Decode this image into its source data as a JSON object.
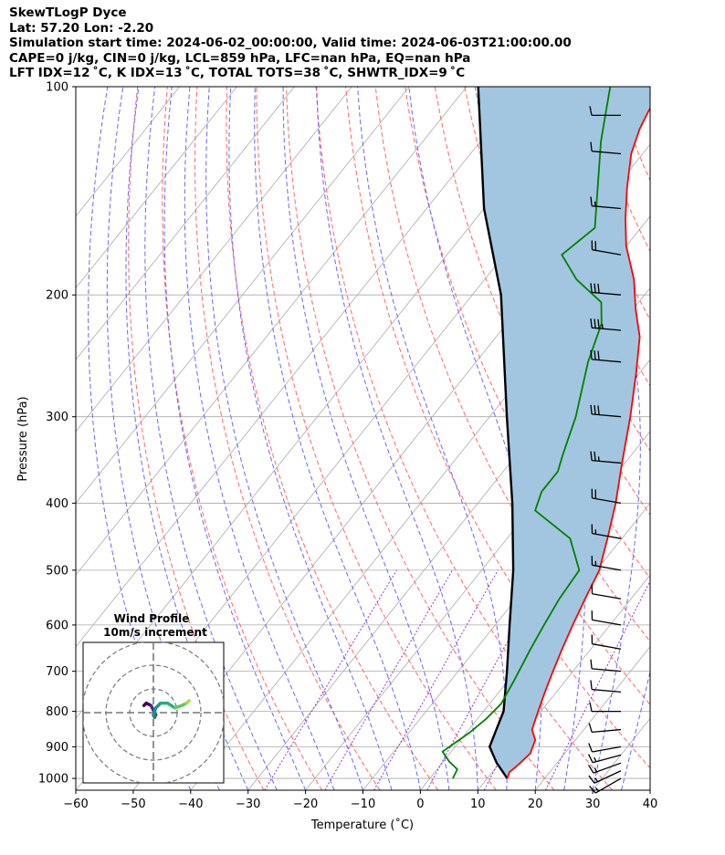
{
  "header": {
    "line1": "SkewTLogP Dyce",
    "line2": "Lat: 57.20   Lon: -2.20",
    "line3": "Simulation start time: 2024-06-02_00:00:00, Valid time: 2024-06-03T21:00:00.00",
    "line4": "CAPE=0 j/kg, CIN=0 j/kg, LCL=859 hPa, LFC=nan hPa, EQ=nan hPa",
    "line5": "LFT IDX=12 ˚C, K IDX=13 ˚C, TOTAL TOTS=38 ˚C, SHWTR_IDX=9 ˚C"
  },
  "colors": {
    "temperature": "#ff0000",
    "dewpoint": "#008000",
    "parcel": "#000000",
    "cape_fill": "#a3c6e0",
    "dry_adiabat": "#ff6666",
    "moist_adiabat": "#6666ff",
    "mixing_ratio": "#9933cc",
    "isotherm_grid": "#aaaaaa"
  },
  "chart_data": [
    {
      "type": "line",
      "title": "",
      "xlabel": "Temperature (˚C)",
      "ylabel": "Pressure (hPa)",
      "xlim": [
        -60,
        40
      ],
      "ylim": [
        1040,
        100
      ],
      "yscale": "log",
      "skew": true,
      "grid": true,
      "x_ticks": [
        "−60",
        "−50",
        "−40",
        "−30",
        "−20",
        "−10",
        "0",
        "10",
        "20",
        "30",
        "40"
      ],
      "y_ticks": [
        "100",
        "200",
        "300",
        "400",
        "500",
        "600",
        "700",
        "800",
        "900",
        "1000"
      ],
      "series": [
        {
          "key": "temperature",
          "color": "#ff0000",
          "points": [
            [
              13.5,
              1000
            ],
            [
              13.0,
              980
            ],
            [
              13.5,
              955
            ],
            [
              14.0,
              920
            ],
            [
              13.0,
              880
            ],
            [
              11.0,
              850
            ],
            [
              9.5,
              800
            ],
            [
              8.0,
              750
            ],
            [
              6.5,
              700
            ],
            [
              5.0,
              650
            ],
            [
              3.5,
              600
            ],
            [
              2.0,
              550
            ],
            [
              0.5,
              500
            ],
            [
              -2.5,
              450
            ],
            [
              -6.0,
              400
            ],
            [
              -10.5,
              350
            ],
            [
              -15.5,
              300
            ],
            [
              -20.5,
              260
            ],
            [
              -25.0,
              230
            ],
            [
              -29.5,
              210
            ],
            [
              -34.0,
              190
            ],
            [
              -40.0,
              170
            ],
            [
              -44.0,
              155
            ],
            [
              -48.0,
              140
            ],
            [
              -52.0,
              125
            ],
            [
              -54.0,
              115
            ],
            [
              -55.0,
              108
            ],
            [
              -55.5,
              100
            ]
          ]
        },
        {
          "key": "dewpoint",
          "color": "#008000",
          "points": [
            [
              4.0,
              1000
            ],
            [
              3.5,
              970
            ],
            [
              1.0,
              945
            ],
            [
              -1.5,
              915
            ],
            [
              -1.0,
              900
            ],
            [
              0.5,
              860
            ],
            [
              1.5,
              820
            ],
            [
              2.0,
              780
            ],
            [
              1.0,
              720
            ],
            [
              -0.5,
              650
            ],
            [
              -1.5,
              600
            ],
            [
              -2.5,
              550
            ],
            [
              -3.0,
              500
            ],
            [
              -9.0,
              450
            ],
            [
              -19.0,
              410
            ],
            [
              -20.5,
              385
            ],
            [
              -20.5,
              360
            ],
            [
              -22.0,
              340
            ],
            [
              -25.0,
              300
            ],
            [
              -30.5,
              250
            ],
            [
              -33.5,
              220
            ],
            [
              -36.5,
              205
            ],
            [
              -44.0,
              190
            ],
            [
              -50.0,
              175
            ],
            [
              -48.0,
              160
            ],
            [
              -59.0,
              120
            ],
            [
              -65.0,
              100
            ]
          ]
        },
        {
          "key": "parcel",
          "color": "#000000",
          "points": [
            [
              13.5,
              1000
            ],
            [
              9.5,
              950
            ],
            [
              6.0,
              900
            ],
            [
              5.0,
              859
            ],
            [
              3.5,
              800
            ],
            [
              -1.5,
              700
            ],
            [
              -7.5,
              600
            ],
            [
              -14.5,
              500
            ],
            [
              -24.0,
              400
            ],
            [
              -37.0,
              300
            ],
            [
              -55.0,
              200
            ],
            [
              -70.0,
              150
            ],
            [
              -88.0,
              100
            ]
          ]
        }
      ],
      "wind_barbs": [
        {
          "pressure": 1000,
          "speed_kt": 15,
          "dir_deg": 240
        },
        {
          "pressure": 975,
          "speed_kt": 15,
          "dir_deg": 245
        },
        {
          "pressure": 950,
          "speed_kt": 15,
          "dir_deg": 250
        },
        {
          "pressure": 925,
          "speed_kt": 15,
          "dir_deg": 255
        },
        {
          "pressure": 900,
          "speed_kt": 10,
          "dir_deg": 260
        },
        {
          "pressure": 850,
          "speed_kt": 10,
          "dir_deg": 265
        },
        {
          "pressure": 800,
          "speed_kt": 10,
          "dir_deg": 270
        },
        {
          "pressure": 750,
          "speed_kt": 10,
          "dir_deg": 275
        },
        {
          "pressure": 700,
          "speed_kt": 10,
          "dir_deg": 275
        },
        {
          "pressure": 650,
          "speed_kt": 10,
          "dir_deg": 280
        },
        {
          "pressure": 600,
          "speed_kt": 10,
          "dir_deg": 280
        },
        {
          "pressure": 550,
          "speed_kt": 10,
          "dir_deg": 280
        },
        {
          "pressure": 500,
          "speed_kt": 15,
          "dir_deg": 280
        },
        {
          "pressure": 450,
          "speed_kt": 15,
          "dir_deg": 280
        },
        {
          "pressure": 400,
          "speed_kt": 20,
          "dir_deg": 280
        },
        {
          "pressure": 350,
          "speed_kt": 25,
          "dir_deg": 275
        },
        {
          "pressure": 300,
          "speed_kt": 30,
          "dir_deg": 275
        },
        {
          "pressure": 250,
          "speed_kt": 30,
          "dir_deg": 275
        },
        {
          "pressure": 225,
          "speed_kt": 35,
          "dir_deg": 275
        },
        {
          "pressure": 200,
          "speed_kt": 30,
          "dir_deg": 275
        },
        {
          "pressure": 175,
          "speed_kt": 20,
          "dir_deg": 280
        },
        {
          "pressure": 150,
          "speed_kt": 15,
          "dir_deg": 275
        },
        {
          "pressure": 125,
          "speed_kt": 10,
          "dir_deg": 275
        },
        {
          "pressure": 110,
          "speed_kt": 10,
          "dir_deg": 270
        }
      ]
    },
    {
      "type": "line",
      "title": "Wind Profile",
      "subtitle": "10m/s increment",
      "series": [
        {
          "name": "hodograph",
          "points": [
            [
              -4,
              3
            ],
            [
              -3,
              4
            ],
            [
              -1,
              3
            ],
            [
              0,
              1
            ],
            [
              0.5,
              0.5
            ],
            [
              1,
              -1
            ],
            [
              0.5,
              -2
            ],
            [
              0,
              -1
            ],
            [
              1,
              2
            ],
            [
              3,
              4
            ],
            [
              6,
              4
            ],
            [
              9,
              2
            ],
            [
              12,
              3
            ],
            [
              14,
              4
            ],
            [
              15,
              5
            ]
          ]
        }
      ]
    }
  ]
}
